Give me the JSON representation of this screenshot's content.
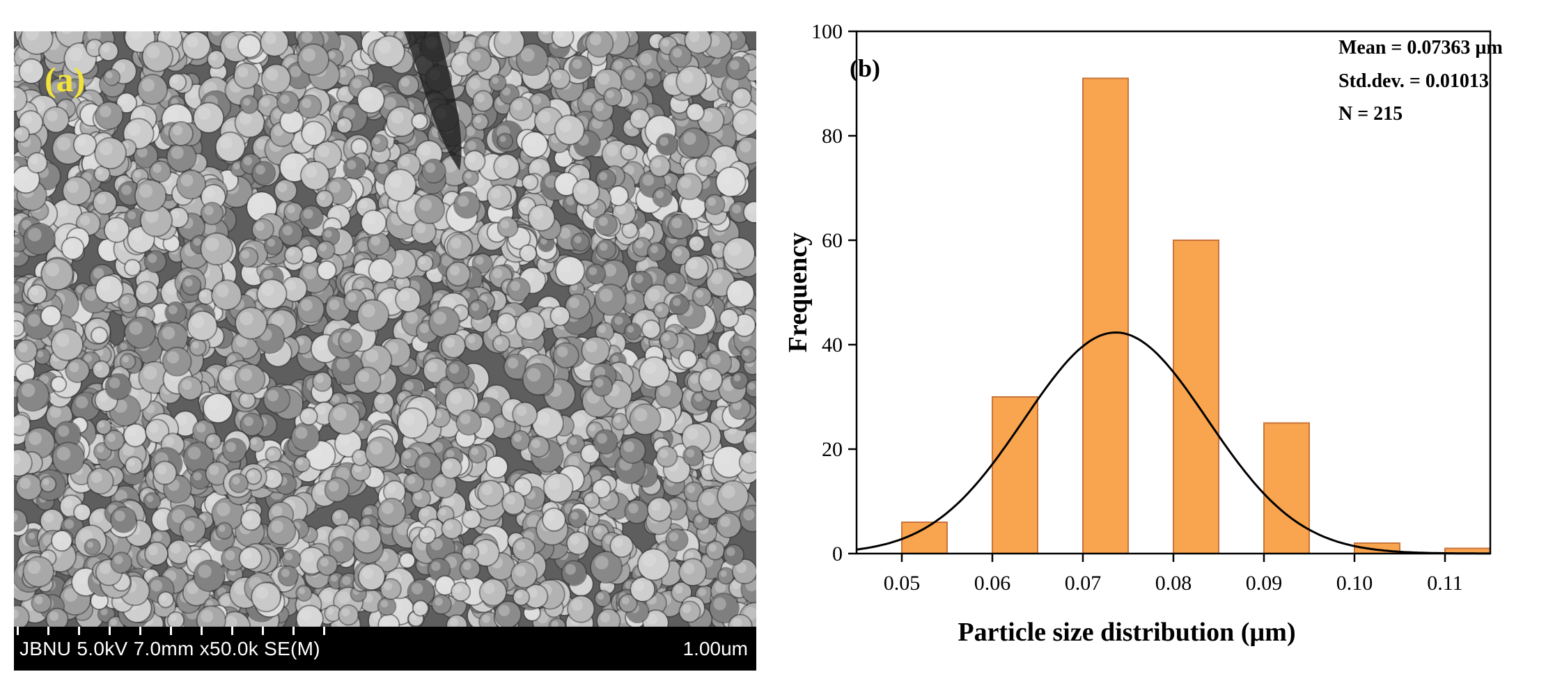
{
  "figure": {
    "panel_a": {
      "label": "(a)",
      "info_text": "JBNU 5.0kV 7.0mm x50.0k SE(M)",
      "scale_text": "1.00um"
    },
    "panel_b": {
      "label": "(b)"
    }
  },
  "chart_data": {
    "type": "bar",
    "title": "",
    "xlabel": "Particle size distribution (µm)",
    "ylabel": "Frequency",
    "xlim": [
      0.045,
      0.115
    ],
    "ylim": [
      0,
      100
    ],
    "x_ticks": [
      0.05,
      0.06,
      0.07,
      0.08,
      0.09,
      0.1,
      0.11
    ],
    "x_tick_labels": [
      "0.05",
      "0.06",
      "0.07",
      "0.08",
      "0.09",
      "0.10",
      "0.11"
    ],
    "y_ticks": [
      0,
      20,
      40,
      60,
      80,
      100
    ],
    "y_tick_labels": [
      "0",
      "20",
      "40",
      "60",
      "80",
      "100"
    ],
    "bin_width": 0.005,
    "bins": [
      {
        "x": 0.0525,
        "value": 6
      },
      {
        "x": 0.0625,
        "value": 30
      },
      {
        "x": 0.0725,
        "value": 91
      },
      {
        "x": 0.0825,
        "value": 60
      },
      {
        "x": 0.0925,
        "value": 25
      },
      {
        "x": 0.1025,
        "value": 2
      },
      {
        "x": 0.1125,
        "value": 1
      }
    ],
    "fit_curve": {
      "type": "normal",
      "mean": 0.07363,
      "std": 0.01013,
      "n": 215
    },
    "annotations": [
      "Mean = 0.07363 µm",
      "Std.dev. = 0.01013",
      "N = 215"
    ],
    "colors": {
      "bar_fill": "#f9a44e",
      "bar_stroke": "#c8743a",
      "curve": "#000000"
    }
  }
}
